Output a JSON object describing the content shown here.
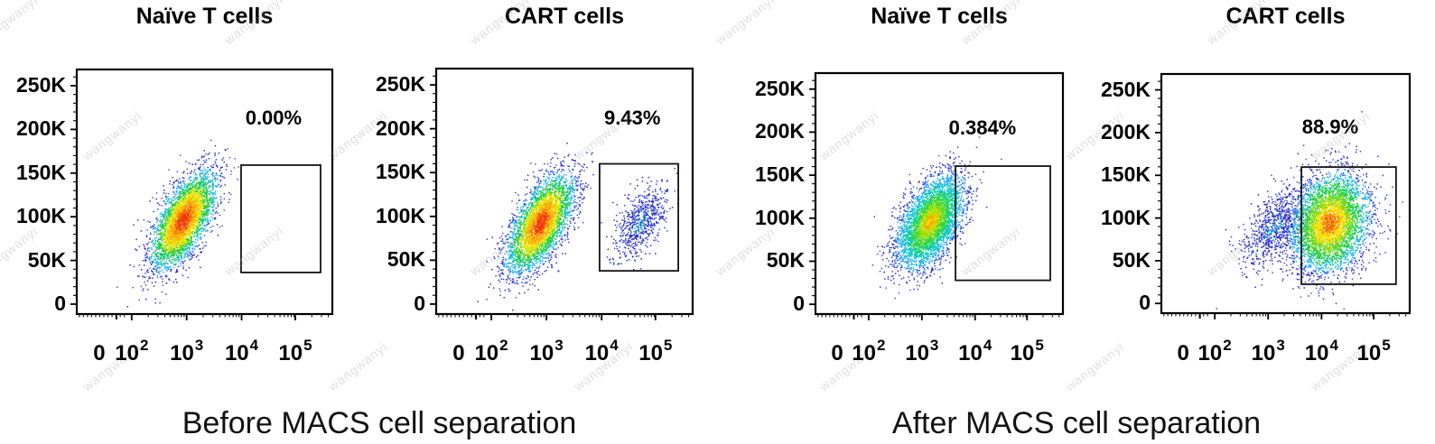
{
  "figure": {
    "watermark": "wangwanyi",
    "groups": [
      {
        "label": "Before MACS cell separation"
      },
      {
        "label": "After MACS cell separation"
      }
    ]
  },
  "axes": {
    "y_tick_labels": [
      "250K",
      "200K",
      "150K",
      "100K",
      "50K",
      "0"
    ],
    "y_tick_values": [
      250000,
      200000,
      150000,
      100000,
      50000,
      0
    ],
    "x_tick_labels": [
      {
        "base": "0",
        "exp": ""
      },
      {
        "base": "10",
        "exp": "2"
      },
      {
        "base": "10",
        "exp": "3"
      },
      {
        "base": "10",
        "exp": "4"
      },
      {
        "base": "10",
        "exp": "5"
      }
    ],
    "x_scale": "biexponential",
    "y_scale": "linear"
  },
  "palettes": {
    "hot": [
      [
        0.45,
        [
          "#e8250c",
          "#ff5400"
        ]
      ],
      [
        0.85,
        [
          "#ff9100",
          "#ffc800"
        ]
      ],
      [
        1.25,
        [
          "#ffe600",
          "#c8e600"
        ]
      ],
      [
        1.7,
        [
          "#35d135",
          "#00c860"
        ]
      ],
      [
        2.15,
        [
          "#00c0e8",
          "#30a8ff"
        ]
      ],
      [
        9,
        [
          "#2b35dd",
          "#2222bb",
          "#3947ee"
        ]
      ]
    ],
    "warm": [
      [
        0.4,
        [
          "#ff7300",
          "#ffae00",
          "#e8420c"
        ]
      ],
      [
        0.8,
        [
          "#ffd300",
          "#ffe900"
        ]
      ],
      [
        1.2,
        [
          "#9fe000",
          "#4fd42a"
        ]
      ],
      [
        1.65,
        [
          "#2fd12f",
          "#00cc77"
        ]
      ],
      [
        2.1,
        [
          "#00bfe8",
          "#2fa9ff"
        ]
      ],
      [
        9,
        [
          "#2b35dd",
          "#2a2ac0",
          "#3a4bee"
        ]
      ]
    ],
    "green": [
      [
        0.35,
        [
          "#ffc400",
          "#ff9100",
          "#ffe600"
        ]
      ],
      [
        0.75,
        [
          "#c8e600",
          "#7ddc10"
        ]
      ],
      [
        1.2,
        [
          "#2fd12f",
          "#35d860"
        ]
      ],
      [
        1.7,
        [
          "#00cfa0",
          "#00c0e8"
        ]
      ],
      [
        2.15,
        [
          "#20a8f0",
          "#2fa9ff"
        ]
      ],
      [
        9,
        [
          "#2b35dd",
          "#2525c4",
          "#3a4bee"
        ]
      ]
    ],
    "blue": [
      [
        0.5,
        [
          "#1f7fe8",
          "#00a8e8",
          "#2233cc"
        ]
      ],
      [
        9,
        [
          "#2a2ac8",
          "#2233dd",
          "#1b1bb0",
          "#3344e0"
        ]
      ]
    ]
  },
  "chart_data": [
    {
      "type": "scatter",
      "subtype": "flow-cytometry-pseudocolor",
      "title": "Naïve T cells",
      "group": "Before MACS cell separation",
      "percent": "0.00%",
      "percent_in_gate": 0.0,
      "gate": {
        "x_range": [
          "10^4.0",
          "10^5.4"
        ],
        "y_range": [
          36000,
          159000
        ],
        "fx": [
          0.643,
          0.954
        ],
        "fy": [
          0.17,
          0.609
        ]
      },
      "populations": [
        {
          "name": "main",
          "approx_center": {
            "x": "10^2.9",
            "y": 96000
          },
          "events": 3800,
          "palette": "hot",
          "fx": 0.415,
          "fy": 0.385,
          "sig_major": 0.11,
          "sig_minor": 0.045,
          "angle_deg": 63
        }
      ]
    },
    {
      "type": "scatter",
      "subtype": "flow-cytometry-pseudocolor",
      "title": "CART cells",
      "group": "Before MACS cell separation",
      "percent": "9.43%",
      "percent_in_gate": 9.43,
      "gate": {
        "x_range": [
          "10^4.0",
          "10^5.4"
        ],
        "y_range": [
          38000,
          158000
        ],
        "fx": [
          0.637,
          0.944
        ],
        "fy": [
          0.176,
          0.612
        ]
      },
      "populations": [
        {
          "name": "main",
          "approx_center": {
            "x": "10^2.9",
            "y": 94000
          },
          "events": 3800,
          "palette": "hot",
          "fx": 0.405,
          "fy": 0.372,
          "sig_major": 0.11,
          "sig_minor": 0.045,
          "angle_deg": 63
        },
        {
          "name": "gated",
          "approx_center": {
            "x": "10^4.7",
            "y": 94000
          },
          "events": 640,
          "palette": "blue",
          "fx": 0.792,
          "fy": 0.372,
          "sig_major": 0.085,
          "sig_minor": 0.04,
          "angle_deg": 60
        }
      ]
    },
    {
      "type": "scatter",
      "subtype": "flow-cytometry-pseudocolor",
      "title": "Naïve T cells",
      "group": "After MACS cell separation",
      "percent": "0.384%",
      "percent_in_gate": 0.384,
      "gate": {
        "x_range": [
          "10^3.6",
          "10^5.4"
        ],
        "y_range": [
          28000,
          160000
        ],
        "fx": [
          0.566,
          0.949
        ],
        "fy": [
          0.14,
          0.614
        ]
      },
      "populations": [
        {
          "name": "main",
          "approx_center": {
            "x": "10^3.1",
            "y": 96000
          },
          "events": 4200,
          "palette": "green",
          "fx": 0.462,
          "fy": 0.385,
          "sig_major": 0.105,
          "sig_minor": 0.052,
          "angle_deg": 63
        }
      ]
    },
    {
      "type": "scatter",
      "subtype": "flow-cytometry-pseudocolor",
      "title": "CART cells",
      "group": "After MACS cell separation",
      "percent": "88.9%",
      "percent_in_gate": 88.9,
      "gate": {
        "x_range": [
          "10^3.6",
          "10^5.4"
        ],
        "y_range": [
          22000,
          160000
        ],
        "fx": [
          0.564,
          0.945
        ],
        "fy": [
          0.121,
          0.611
        ]
      },
      "populations": [
        {
          "name": "negative",
          "approx_center": {
            "x": "10^3.1",
            "y": 90000
          },
          "events": 800,
          "palette": "blue",
          "fx": 0.452,
          "fy": 0.36,
          "sig_major": 0.095,
          "sig_minor": 0.048,
          "angle_deg": 55
        },
        {
          "name": "main",
          "approx_center": {
            "x": "10^4.1",
            "y": 95000
          },
          "events": 4300,
          "palette": "warm",
          "fx": 0.676,
          "fy": 0.378,
          "sig_major": 0.105,
          "sig_minor": 0.075,
          "angle_deg": 74
        }
      ]
    }
  ]
}
